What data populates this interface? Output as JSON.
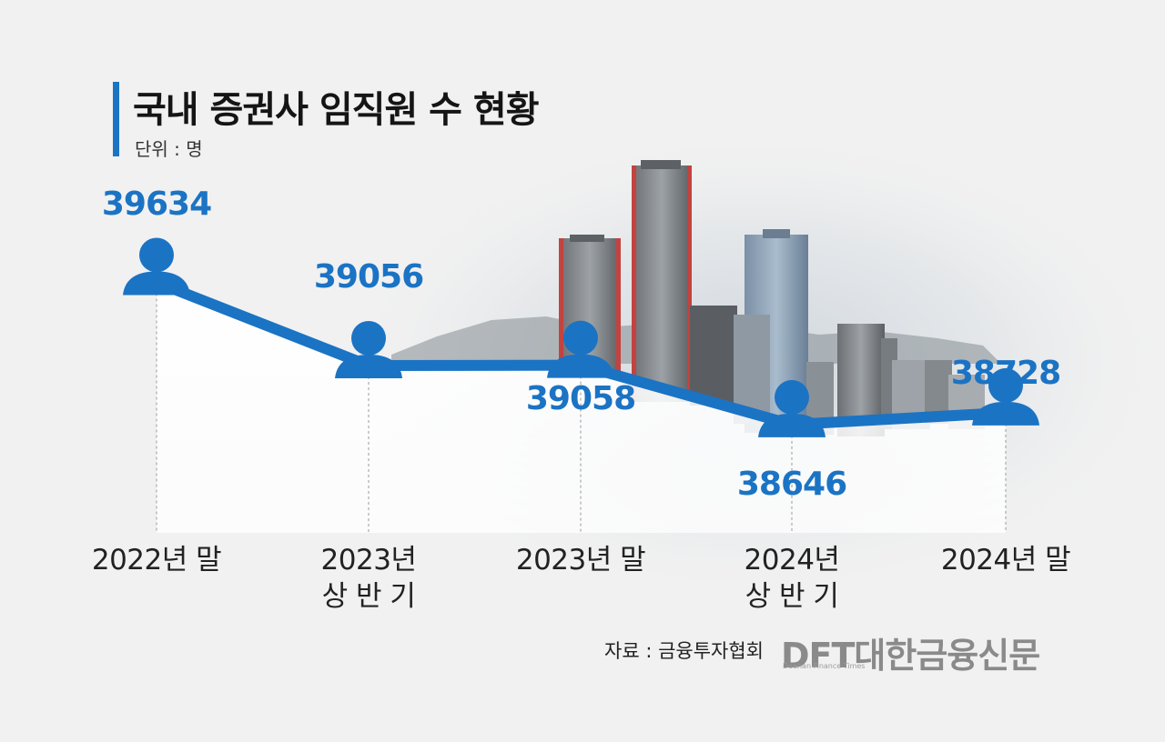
{
  "header": {
    "title": "국내 증권사 임직원 수 현황",
    "unit": "단위 : 명"
  },
  "colors": {
    "accent": "#1b73c4",
    "guide": "#9a9a9a"
  },
  "chart_data": {
    "type": "line",
    "title": "국내 증권사 임직원 수 현황",
    "unit": "단위 : 명",
    "categories": [
      [
        "2022년 말"
      ],
      [
        "2023년",
        "상 반 기"
      ],
      [
        "2023년 말"
      ],
      [
        "2024년",
        "상 반 기"
      ],
      [
        "2024년 말"
      ]
    ],
    "values": [
      39634,
      39056,
      39058,
      38646,
      38728
    ],
    "value_labels": [
      "39634",
      "39056",
      "39058",
      "38646",
      "38728"
    ],
    "ylim": [
      38500,
      39700
    ],
    "grid": false,
    "markers": "person-icon"
  },
  "footer": {
    "source": "자료 : 금융투자협회",
    "logo_main": "DFT대한금융신문",
    "logo_sub": "Daehan Finance Times"
  }
}
